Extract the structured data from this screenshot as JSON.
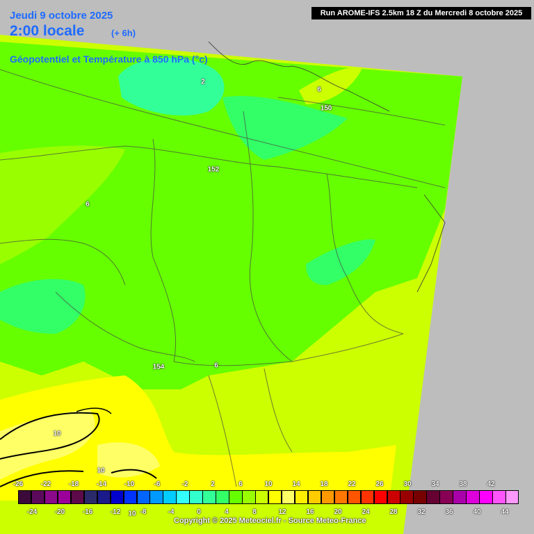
{
  "header": {
    "date": "Jeudi 9 octobre 2025",
    "time": "2:00 locale",
    "lead": "(+ 6h)",
    "parameter": "Géopotentiel et Température à 850 hPa (°c)",
    "run": "Run AROME-IFS 2.5km 18 Z du Mercredi 8 octobre 2025"
  },
  "map_labels": {
    "geop_152": "152",
    "geop_154": "154",
    "geop_150": "150",
    "temp_2": "2",
    "temp_6_north": "6",
    "temp_6_west": "6",
    "temp_6_south": "6",
    "temp_10_a": "10",
    "temp_10_b": "10",
    "temp_10_c": "10"
  },
  "legend": {
    "top_ticks": [
      "-26",
      "-22",
      "-18",
      "-14",
      "-10",
      "-6",
      "-2",
      "2",
      "6",
      "10",
      "14",
      "18",
      "22",
      "26",
      "30",
      "34",
      "38",
      "42"
    ],
    "bottom_ticks": [
      "-24",
      "-20",
      "-16",
      "-12",
      "-8",
      "-4",
      "0",
      "4",
      "8",
      "12",
      "16",
      "20",
      "24",
      "28",
      "32",
      "36",
      "40",
      "44"
    ],
    "colors": [
      "#3b0a3b",
      "#5b0a5b",
      "#8a0a8a",
      "#9b009b",
      "#5c0a4a",
      "#2a2a6a",
      "#1a1a8a",
      "#0000cc",
      "#0033ff",
      "#0066ff",
      "#0099ff",
      "#00ccff",
      "#33ffff",
      "#33ffcc",
      "#33ff99",
      "#33ff66",
      "#66ff00",
      "#99ff00",
      "#ccff00",
      "#ffff00",
      "#ffff66",
      "#ffee00",
      "#ffcc00",
      "#ff9900",
      "#ff7700",
      "#ff5500",
      "#ff3300",
      "#ff0000",
      "#cc0000",
      "#990000",
      "#770000",
      "#660033",
      "#880055",
      "#aa00aa",
      "#dd00dd",
      "#ff00ff",
      "#ff55ff",
      "#ff99ff"
    ]
  },
  "copyright": "Copyright © 2025 Meteociel.fr - Source Meteo-France"
}
